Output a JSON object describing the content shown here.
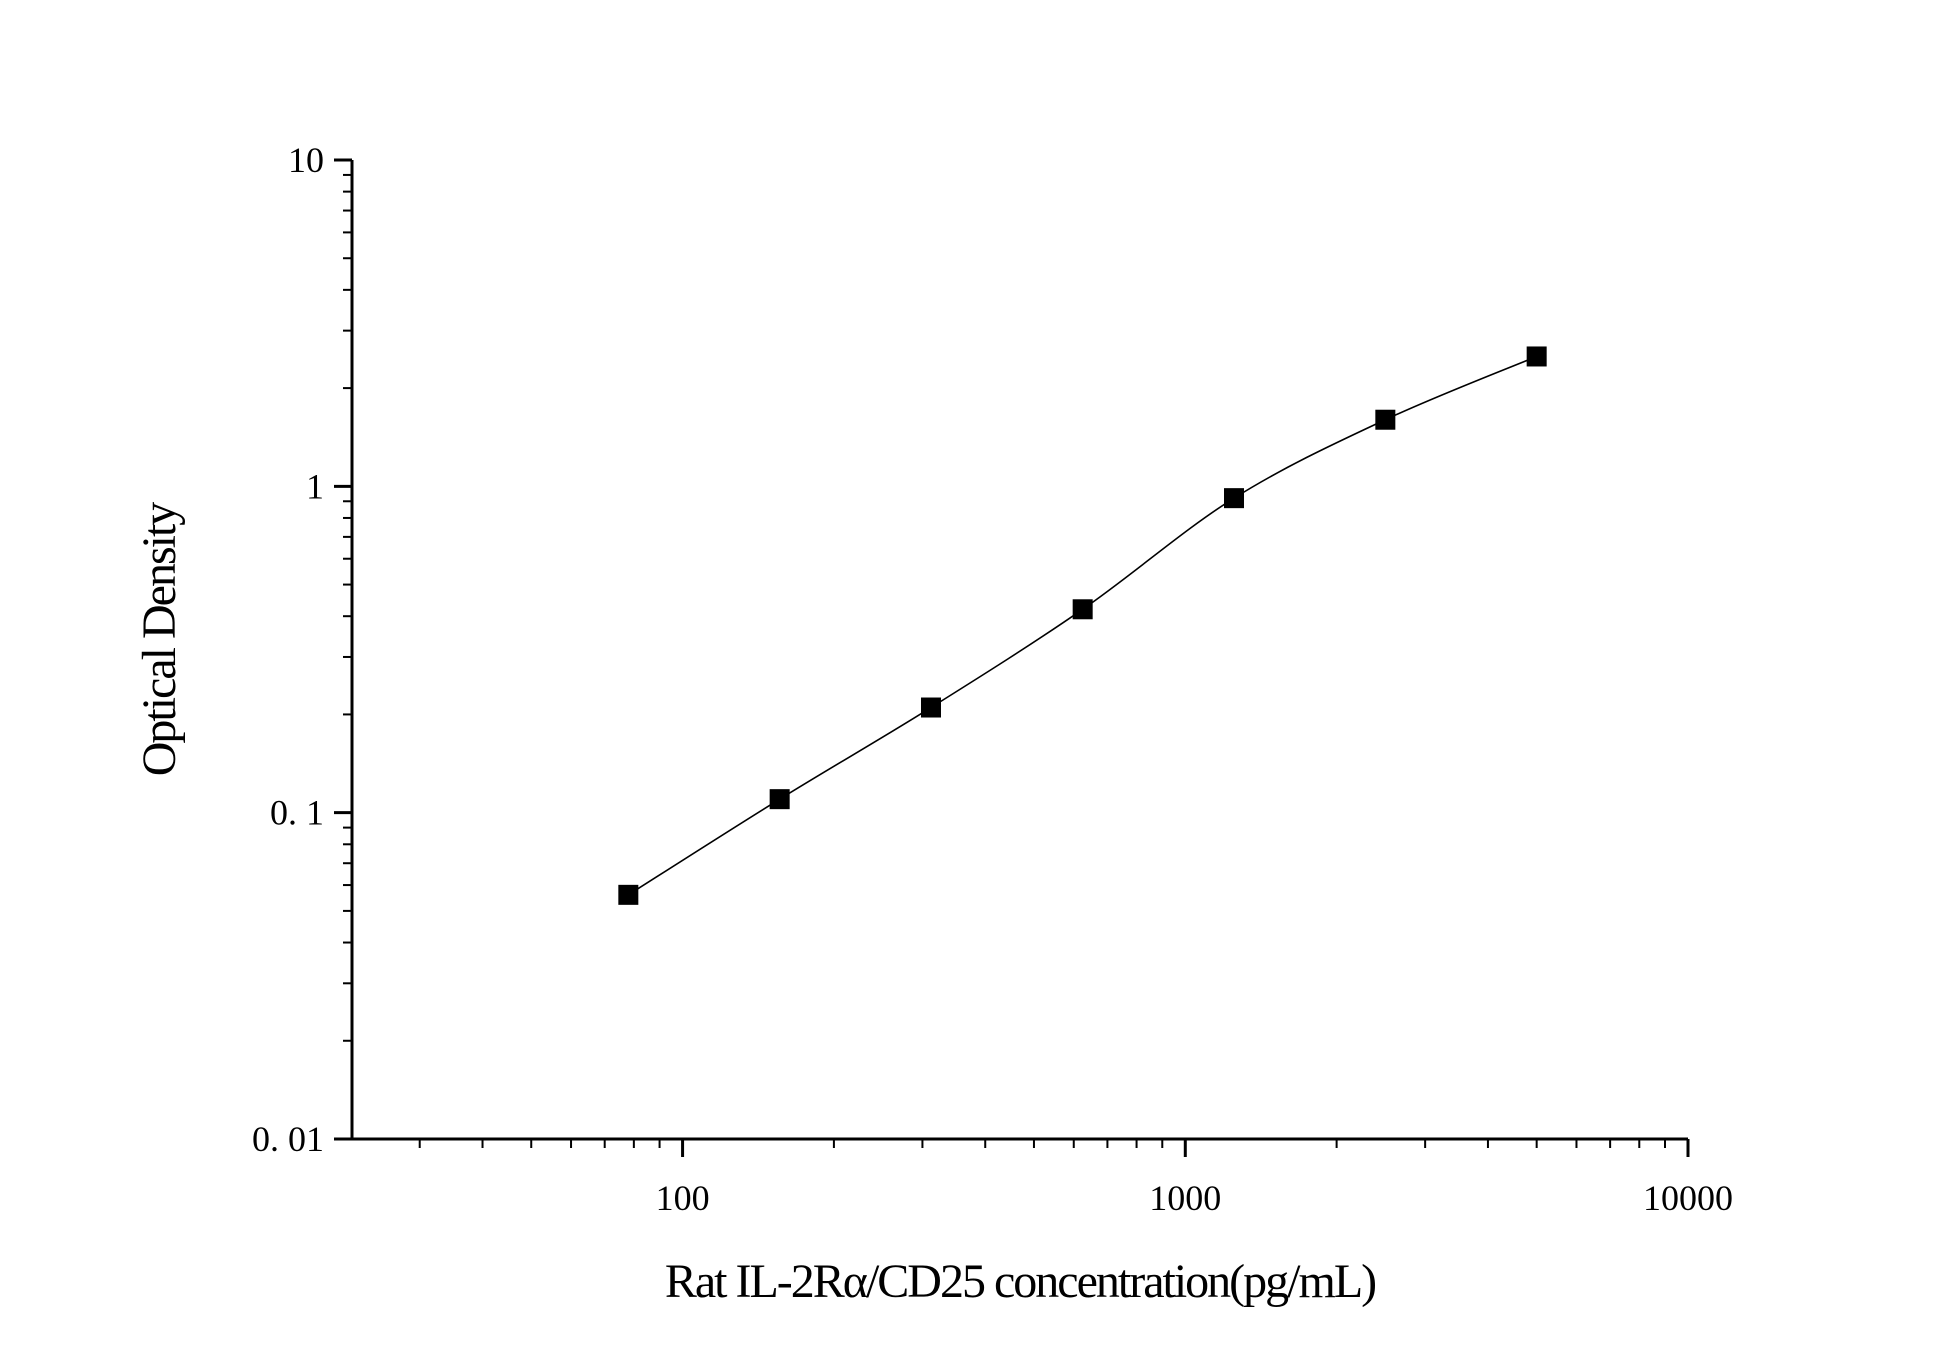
{
  "chart_data": {
    "type": "line",
    "xlabel": "Rat  IL-2Rα/CD25  concentration(pg/mL)",
    "ylabel": "Optical Density",
    "xscale": "log",
    "yscale": "log",
    "xlim": [
      22,
      10000
    ],
    "ylim": [
      0.01,
      10
    ],
    "xticks": [
      {
        "value": 100,
        "label": "100"
      },
      {
        "value": 1000,
        "label": "1000"
      },
      {
        "value": 10000,
        "label": "10000"
      }
    ],
    "yticks": [
      {
        "value": 10,
        "label": "10"
      },
      {
        "value": 1,
        "label": "1"
      },
      {
        "value": 0.1,
        "label": "0. 1"
      },
      {
        "value": 0.01,
        "label": "0. 01"
      }
    ],
    "grid": false,
    "marker": "square",
    "series": [
      {
        "x": [
          78,
          156,
          312,
          625,
          1250,
          2500,
          5000
        ],
        "y": [
          0.056,
          0.11,
          0.21,
          0.42,
          0.92,
          1.6,
          2.5
        ]
      }
    ],
    "colors": {
      "line": "#000000",
      "marker": "#000000",
      "axis": "#000000"
    }
  }
}
